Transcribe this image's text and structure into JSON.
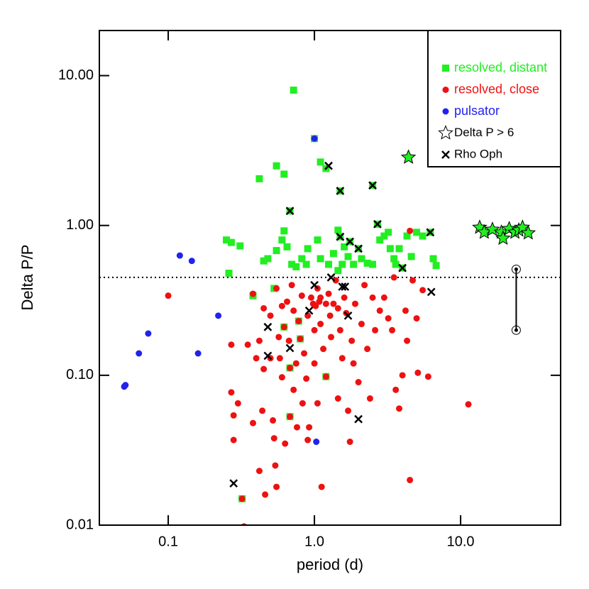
{
  "chart_data": {
    "type": "scatter",
    "x_label": "period (d)",
    "y_label": "Delta P/P",
    "log_x": true,
    "log_y": true,
    "xlim": [
      0.0338,
      48.3
    ],
    "ylim": [
      0.01,
      20
    ],
    "xticks": [
      0.1,
      {
        "value": 1,
        "label": "1.0"
      },
      {
        "value": 10,
        "label": "10.0"
      }
    ],
    "yticks": [
      {
        "value": 0.01,
        "label": "0.01"
      },
      {
        "value": 0.1,
        "label": "0.10"
      },
      {
        "value": 1,
        "label": "1.00"
      },
      {
        "value": 10,
        "label": "10.00"
      }
    ],
    "legend_position": "upper right",
    "reference_line_y": 0.45,
    "segment": {
      "x": 24,
      "y": [
        0.51,
        0.2
      ]
    },
    "series": [
      {
        "name": "resolved, distant",
        "color": "#22ee22",
        "marker": "square",
        "x": [
          0.72,
          1.0,
          1.1,
          1.2,
          0.55,
          0.42,
          0.62,
          0.68,
          1.5,
          2.5,
          0.25,
          0.27,
          0.31,
          0.26,
          0.45,
          0.48,
          0.55,
          0.6,
          0.62,
          0.65,
          0.7,
          0.75,
          0.82,
          0.88,
          0.9,
          1.05,
          1.1,
          1.25,
          1.35,
          1.45,
          1.5,
          1.55,
          1.6,
          1.7,
          1.75,
          1.85,
          2.0,
          2.1,
          2.3,
          2.5,
          2.7,
          2.8,
          3.0,
          3.2,
          3.3,
          3.5,
          3.6,
          3.8,
          4.0,
          4.3,
          4.6,
          5.0,
          5.5,
          6.2,
          6.5,
          6.8,
          1.45,
          0.32,
          0.38,
          0.53,
          0.62,
          0.68,
          0.68,
          0.78,
          0.8,
          1.2
        ],
        "y": [
          8.0,
          3.8,
          2.65,
          2.4,
          2.5,
          2.05,
          2.2,
          1.25,
          1.7,
          1.85,
          0.8,
          0.77,
          0.73,
          0.48,
          0.58,
          0.6,
          0.68,
          0.8,
          0.92,
          0.72,
          0.55,
          0.53,
          0.6,
          0.55,
          0.7,
          0.8,
          0.6,
          0.55,
          0.65,
          0.93,
          0.84,
          0.55,
          0.72,
          0.62,
          0.78,
          0.55,
          0.7,
          0.6,
          0.56,
          0.55,
          1.02,
          0.8,
          0.85,
          0.9,
          0.7,
          0.6,
          0.55,
          0.7,
          0.52,
          0.85,
          0.62,
          0.9,
          0.85,
          0.9,
          0.6,
          0.54,
          0.5,
          0.015,
          0.34,
          0.38,
          0.21,
          0.112,
          0.053,
          0.23,
          0.175,
          0.098
        ]
      },
      {
        "name": "resolved, close",
        "color": "#ee1111",
        "marker": "circle",
        "x": [
          0.1,
          0.27,
          0.27,
          0.28,
          0.28,
          0.3,
          0.32,
          0.33,
          0.35,
          0.38,
          0.38,
          0.4,
          0.42,
          0.42,
          0.44,
          0.45,
          0.45,
          0.46,
          0.5,
          0.5,
          0.52,
          0.53,
          0.55,
          0.54,
          0.55,
          0.57,
          0.58,
          0.6,
          0.6,
          0.62,
          0.63,
          0.65,
          0.67,
          0.68,
          0.68,
          0.7,
          0.72,
          0.72,
          0.75,
          0.76,
          0.78,
          0.8,
          0.82,
          0.83,
          0.85,
          0.88,
          0.9,
          0.9,
          0.92,
          0.95,
          0.98,
          1.0,
          1.0,
          1.02,
          1.05,
          1.05,
          1.08,
          1.1,
          1.1,
          1.12,
          1.15,
          1.2,
          1.2,
          1.25,
          1.28,
          1.3,
          1.35,
          1.4,
          1.45,
          1.45,
          1.5,
          1.55,
          1.6,
          1.65,
          1.7,
          1.75,
          1.8,
          1.85,
          1.9,
          2.0,
          2.1,
          2.2,
          2.3,
          2.4,
          2.5,
          2.6,
          2.8,
          3.0,
          3.2,
          3.4,
          3.6,
          3.8,
          4.0,
          4.2,
          4.3,
          4.5,
          4.5,
          4.7,
          5.0,
          5.1,
          5.5,
          6.0,
          11.3,
          3.5
        ],
        "y": [
          0.34,
          0.16,
          0.077,
          0.054,
          0.037,
          0.065,
          0.015,
          0.0098,
          0.16,
          0.35,
          0.048,
          0.13,
          0.17,
          0.023,
          0.058,
          0.28,
          0.11,
          0.016,
          0.25,
          0.13,
          0.05,
          0.038,
          0.018,
          0.025,
          0.38,
          0.18,
          0.13,
          0.29,
          0.097,
          0.21,
          0.035,
          0.31,
          0.17,
          0.112,
          0.053,
          0.4,
          0.27,
          0.08,
          0.12,
          0.045,
          0.23,
          0.175,
          0.34,
          0.065,
          0.14,
          0.095,
          0.25,
          0.037,
          0.045,
          0.33,
          0.3,
          0.2,
          0.12,
          0.29,
          0.38,
          0.065,
          0.31,
          0.33,
          0.22,
          0.018,
          0.15,
          0.098,
          0.3,
          0.35,
          0.25,
          0.18,
          0.3,
          0.43,
          0.28,
          0.07,
          0.2,
          0.13,
          0.33,
          0.26,
          0.058,
          0.036,
          0.17,
          0.12,
          0.3,
          0.09,
          0.22,
          0.4,
          0.15,
          0.07,
          0.33,
          0.2,
          0.27,
          0.33,
          0.24,
          0.2,
          0.08,
          0.06,
          0.1,
          0.27,
          0.17,
          0.92,
          0.02,
          0.43,
          0.24,
          0.104,
          0.37,
          0.098,
          0.064,
          0.45
        ]
      },
      {
        "name": "pulsator",
        "color": "#2222ee",
        "marker": "circle",
        "x": [
          0.05,
          0.051,
          0.063,
          0.073,
          0.12,
          0.145,
          0.16,
          0.22,
          1.0,
          1.03
        ],
        "y": [
          0.084,
          0.086,
          0.14,
          0.19,
          0.63,
          0.58,
          0.14,
          0.25,
          3.8,
          0.036
        ]
      },
      {
        "name": "Delta P > 6",
        "color": "#22ee22",
        "marker": "star",
        "x": [
          4.4,
          13.5,
          14.5,
          16.5,
          19.0,
          19.5,
          21.5,
          23.5,
          25,
          26.5,
          29
        ],
        "y": [
          2.85,
          0.97,
          0.9,
          0.94,
          0.9,
          0.82,
          0.95,
          0.9,
          0.93,
          0.97,
          0.89
        ]
      },
      {
        "name": "Rho Oph",
        "color": "#000000",
        "marker": "x",
        "x": [
          0.68,
          1.25,
          1.5,
          2.5,
          1.5,
          1.75,
          2.0,
          2.7,
          4.0,
          6.2,
          6.3,
          1.0,
          1.3,
          1.55,
          1.62,
          1.7,
          0.92,
          0.48,
          0.48,
          0.68,
          0.28,
          2.0
        ],
        "y": [
          1.25,
          2.5,
          1.7,
          1.85,
          0.84,
          0.78,
          0.7,
          1.02,
          0.52,
          0.9,
          0.36,
          0.4,
          0.45,
          0.39,
          0.39,
          0.25,
          0.27,
          0.21,
          0.135,
          0.152,
          0.019,
          0.051
        ]
      }
    ]
  }
}
